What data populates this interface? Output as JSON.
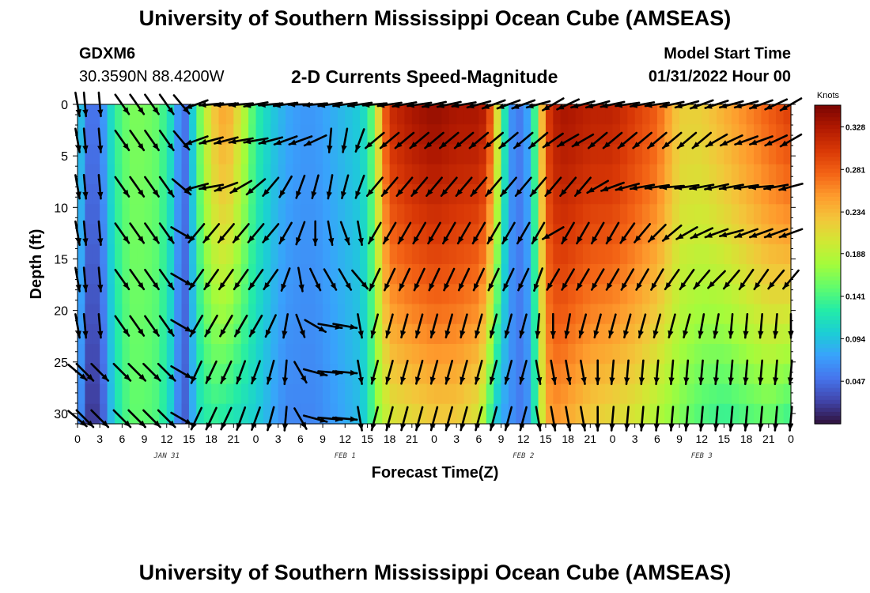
{
  "page": {
    "title": "University of Southern Mississippi Ocean Cube (AMSEAS)",
    "title_repeat": "University of Southern Mississippi Ocean Cube (AMSEAS)",
    "station": "GDXM6",
    "coords": "30.3590N  88.4200W",
    "subtitle": "2-D Currents Speed-Magnitude",
    "model_start_label": "Model Start Time",
    "model_start_value": "01/31/2022 Hour 00"
  },
  "colors": {
    "ramp": [
      "#30123b",
      "#4145ab",
      "#4675ed",
      "#39a2fc",
      "#1bcfd4",
      "#24eca6",
      "#61fc6c",
      "#a4fc3b",
      "#d1e834",
      "#f3c63a",
      "#fe9b2d",
      "#f36315",
      "#d93806",
      "#b11901",
      "#7a0402"
    ]
  },
  "chart_data": {
    "type": "heatmap",
    "title": "2-D Currents Speed-Magnitude",
    "xlabel": "Forecast Time(Z)",
    "ylabel": "Depth (ft)",
    "xlim": [
      0,
      96
    ],
    "ylim": [
      0,
      31
    ],
    "x_tick_labels": [
      "0",
      "3",
      "6",
      "9",
      "12",
      "15",
      "18",
      "21",
      "0",
      "3",
      "6",
      "9",
      "12",
      "15",
      "18",
      "21",
      "0",
      "3",
      "6",
      "9",
      "12",
      "15",
      "18",
      "21",
      "0",
      "3",
      "6",
      "9",
      "12",
      "15",
      "18",
      "21",
      "0"
    ],
    "y_ticks": [
      0,
      5,
      10,
      15,
      20,
      25,
      30
    ],
    "y_tick_labels": [
      "0",
      "5",
      "10",
      "15",
      "20",
      "25",
      "30"
    ],
    "date_labels": [
      {
        "label": "JAN 31",
        "hour": 12
      },
      {
        "label": "FEB 1",
        "hour": 36
      },
      {
        "label": "FEB 2",
        "hour": 60
      },
      {
        "label": "FEB 3",
        "hour": 84
      }
    ],
    "colorbar": {
      "title": "Knots",
      "range": [
        0.0,
        0.352
      ],
      "ticks": [
        "0.328",
        "0.281",
        "0.234",
        "0.188",
        "0.141",
        "0.094",
        "0.047"
      ]
    },
    "depth_rows": [
      0,
      3.5,
      8,
      12.5,
      17,
      21.5,
      26,
      30.5
    ],
    "speed_profile": {
      "hours": [
        0,
        1,
        3,
        5,
        7,
        9,
        11,
        13,
        14,
        15,
        16,
        18,
        20,
        22,
        24,
        26,
        28,
        30,
        32,
        34,
        36,
        38,
        39,
        40,
        41,
        42,
        45,
        48,
        51,
        54,
        55,
        56,
        57,
        58,
        59,
        60,
        61,
        62,
        63,
        64,
        65,
        66,
        69,
        72,
        75,
        78,
        81,
        84,
        87,
        90,
        93,
        96
      ],
      "surface": [
        0.13,
        0.05,
        0.05,
        0.13,
        0.16,
        0.16,
        0.15,
        0.1,
        0.04,
        0.06,
        0.14,
        0.22,
        0.25,
        0.2,
        0.13,
        0.1,
        0.08,
        0.07,
        0.07,
        0.08,
        0.09,
        0.1,
        0.12,
        0.17,
        0.26,
        0.31,
        0.33,
        0.34,
        0.33,
        0.33,
        0.32,
        0.26,
        0.16,
        0.08,
        0.05,
        0.06,
        0.09,
        0.18,
        0.29,
        0.32,
        0.33,
        0.33,
        0.32,
        0.32,
        0.3,
        0.28,
        0.22,
        0.22,
        0.24,
        0.26,
        0.28,
        0.3
      ],
      "bottom": [
        0.1,
        0.02,
        0.02,
        0.11,
        0.15,
        0.15,
        0.14,
        0.09,
        0.03,
        0.05,
        0.11,
        0.13,
        0.12,
        0.11,
        0.1,
        0.08,
        0.06,
        0.06,
        0.06,
        0.07,
        0.08,
        0.09,
        0.11,
        0.16,
        0.18,
        0.2,
        0.21,
        0.22,
        0.22,
        0.2,
        0.16,
        0.1,
        0.08,
        0.07,
        0.06,
        0.05,
        0.08,
        0.16,
        0.24,
        0.25,
        0.25,
        0.24,
        0.22,
        0.21,
        0.2,
        0.18,
        0.16,
        0.14,
        0.13,
        0.14,
        0.15,
        0.13
      ]
    },
    "vectors": {
      "columns": [
        0,
        1,
        3,
        6,
        8,
        10,
        12,
        14,
        16,
        18,
        20,
        22,
        24,
        26,
        28,
        30,
        32,
        34,
        36,
        38,
        40,
        42,
        44,
        46,
        48,
        50,
        52,
        54,
        56,
        58,
        60,
        62,
        64,
        66,
        68,
        70,
        72,
        74,
        76,
        78,
        80,
        82,
        84,
        86,
        88,
        90,
        92,
        94,
        96
      ],
      "angle_deg": [
        [
          -80,
          -85,
          -85,
          -55,
          -55,
          -55,
          -55,
          -50,
          -160,
          -175,
          -175,
          -175,
          -170,
          -175,
          -172,
          -178,
          -175,
          -172,
          -172,
          -172,
          -175,
          -172,
          -170,
          -172,
          -168,
          -168,
          -170,
          -165,
          -160,
          -160,
          -160,
          -165,
          -150,
          -155,
          -165,
          -165,
          -168,
          -172,
          -170,
          -172,
          -168,
          -165,
          -160,
          -162,
          -165,
          -165,
          -160,
          -155,
          -150
        ],
        [
          -80,
          -85,
          -85,
          -55,
          -55,
          -55,
          -55,
          -50,
          -160,
          -165,
          -165,
          -170,
          -170,
          -165,
          -160,
          -160,
          -155,
          -95,
          -100,
          -110,
          -140,
          -140,
          -140,
          -140,
          -140,
          -140,
          -140,
          -140,
          -140,
          -140,
          -140,
          -140,
          -145,
          -150,
          -150,
          -140,
          -140,
          -140,
          -140,
          -140,
          -140,
          -140,
          -140,
          -150,
          -155,
          -160,
          -160,
          -155,
          -150
        ],
        [
          -80,
          -85,
          -85,
          -55,
          -55,
          -55,
          -55,
          -40,
          -165,
          -170,
          -160,
          -150,
          -140,
          -130,
          -120,
          -110,
          -105,
          -100,
          -105,
          -110,
          -130,
          -130,
          -130,
          -130,
          -130,
          -130,
          -130,
          -130,
          -130,
          -130,
          -130,
          -130,
          -130,
          -130,
          -130,
          -150,
          -160,
          -165,
          -170,
          -172,
          -175,
          -172,
          -170,
          -168,
          -170,
          -172,
          -175,
          -170,
          -165
        ],
        [
          -80,
          -85,
          -85,
          -55,
          -55,
          -55,
          -55,
          -30,
          -130,
          -130,
          -130,
          -130,
          -130,
          -130,
          -120,
          -110,
          -90,
          -80,
          -70,
          -80,
          -120,
          -120,
          -120,
          -120,
          -120,
          -120,
          -120,
          -120,
          -120,
          -120,
          -120,
          -120,
          -150,
          -120,
          -120,
          -120,
          -120,
          -125,
          -130,
          -135,
          -140,
          -150,
          -155,
          -160,
          -165,
          -160,
          -160,
          -160,
          -160
        ],
        [
          -80,
          -85,
          -85,
          -55,
          -55,
          -55,
          -55,
          -30,
          -125,
          -125,
          -125,
          -125,
          -125,
          -125,
          -110,
          -80,
          -65,
          -60,
          -60,
          -50,
          -115,
          -115,
          -115,
          -115,
          -115,
          -115,
          -115,
          -115,
          -115,
          -115,
          -115,
          -110,
          -120,
          -120,
          -120,
          -120,
          -120,
          -120,
          -120,
          -120,
          -125,
          -125,
          -130,
          -135,
          -130,
          -125,
          -125,
          -130,
          -130
        ],
        [
          -80,
          -85,
          -85,
          -55,
          -55,
          -55,
          -55,
          -30,
          -120,
          -120,
          -120,
          -120,
          -120,
          -115,
          -100,
          -70,
          -30,
          -10,
          -10,
          -80,
          -105,
          -105,
          -105,
          -105,
          -105,
          -105,
          -105,
          -105,
          -105,
          -105,
          -105,
          -95,
          -90,
          -100,
          -105,
          -105,
          -105,
          -105,
          -105,
          -105,
          -105,
          -105,
          -100,
          -100,
          -95,
          -95,
          -95,
          -95,
          -90
        ],
        [
          -40,
          -45,
          -45,
          -45,
          -45,
          -45,
          -45,
          -30,
          -115,
          -115,
          -115,
          -110,
          -110,
          -105,
          -95,
          -60,
          -15,
          -5,
          -5,
          -80,
          -105,
          -105,
          -105,
          -105,
          -105,
          -105,
          -105,
          -105,
          -105,
          -105,
          -105,
          -80,
          -80,
          -80,
          -80,
          -90,
          -95,
          -95,
          -95,
          -95,
          -95,
          -95,
          -95,
          -95,
          -95,
          -95,
          -95,
          -95,
          -95
        ],
        [
          -40,
          -45,
          -45,
          -45,
          -45,
          -45,
          -45,
          -30,
          -115,
          -115,
          -115,
          -110,
          -110,
          -105,
          -95,
          -60,
          -15,
          -5,
          -5,
          -80,
          -105,
          -105,
          -105,
          -105,
          -105,
          -105,
          -105,
          -105,
          -105,
          -105,
          -105,
          -80,
          -80,
          -80,
          -80,
          -90,
          -95,
          -95,
          -95,
          -95,
          -95,
          -95,
          -95,
          -95,
          -95,
          -95,
          -95,
          -95,
          -95
        ]
      ]
    }
  },
  "labels": {
    "knots": "Knots",
    "xlabel": "Forecast Time(Z)",
    "ylabel": "Depth (ft)"
  }
}
